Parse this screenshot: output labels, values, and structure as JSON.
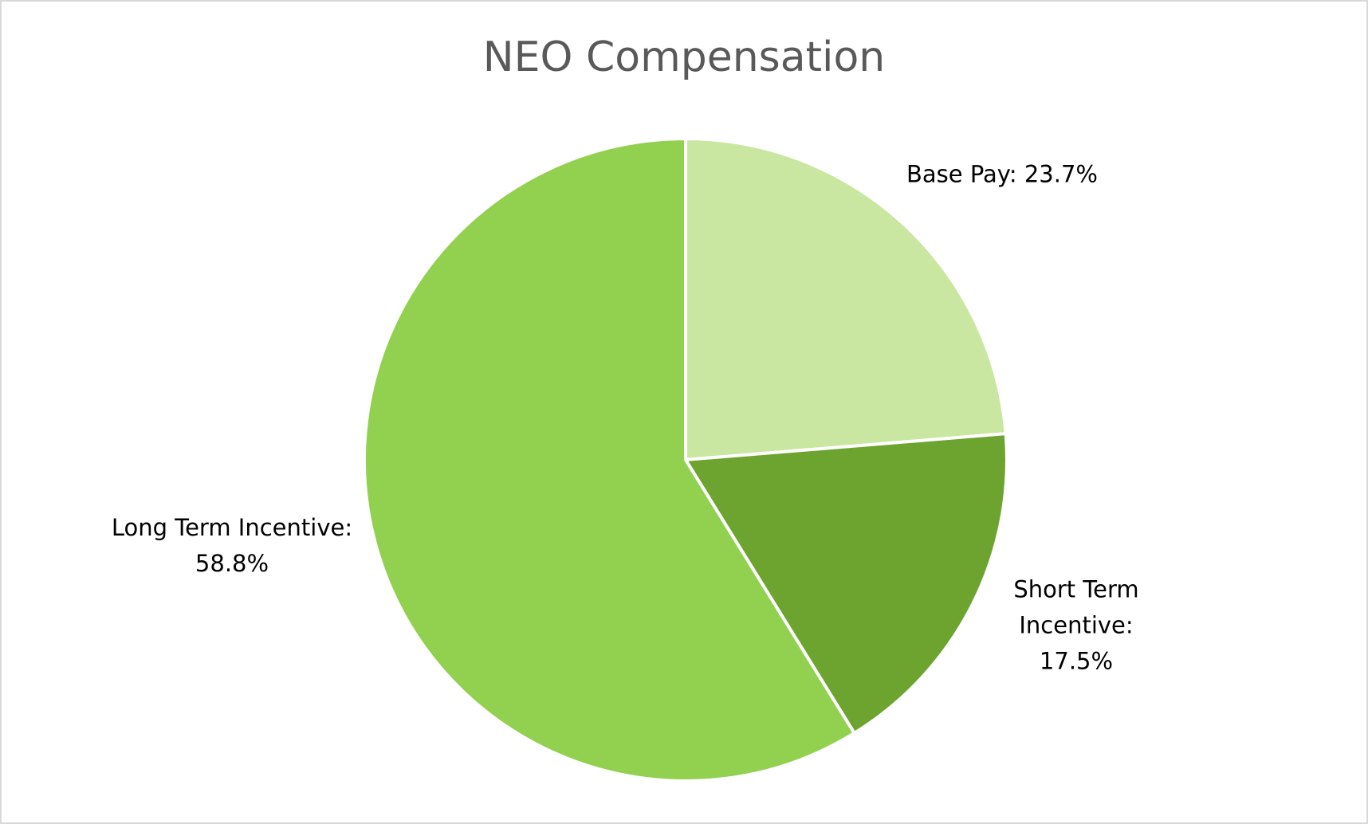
{
  "chart_data": {
    "type": "pie",
    "title": "NEO Compensation",
    "categories": [
      "Base Pay",
      "Short Term Incentive",
      "Long Term Incentive"
    ],
    "values": [
      23.7,
      17.5,
      58.8
    ],
    "value_labels": [
      "Base Pay: 23.7%",
      "Short Term Incentive: 17.5%",
      "Long Term Incentive: 58.8%"
    ],
    "colors": [
      "#c9e7a0",
      "#6ca42f",
      "#92d050"
    ]
  }
}
